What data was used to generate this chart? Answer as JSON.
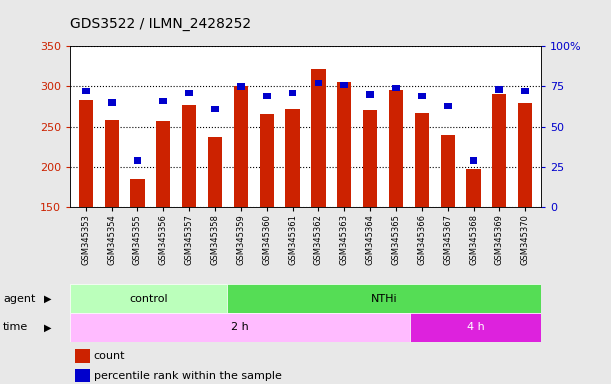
{
  "title": "GDS3522 / ILMN_2428252",
  "samples": [
    "GSM345353",
    "GSM345354",
    "GSM345355",
    "GSM345356",
    "GSM345357",
    "GSM345358",
    "GSM345359",
    "GSM345360",
    "GSM345361",
    "GSM345362",
    "GSM345363",
    "GSM345364",
    "GSM345365",
    "GSM345366",
    "GSM345367",
    "GSM345368",
    "GSM345369",
    "GSM345370"
  ],
  "count_values": [
    283,
    258,
    185,
    257,
    277,
    237,
    301,
    266,
    272,
    322,
    305,
    271,
    296,
    267,
    240,
    197,
    290,
    280
  ],
  "percentile_values": [
    70,
    63,
    27,
    64,
    69,
    59,
    73,
    67,
    69,
    75,
    74,
    68,
    72,
    67,
    61,
    27,
    71,
    70
  ],
  "ylim_left": [
    150,
    350
  ],
  "ylim_right": [
    0,
    100
  ],
  "bar_color_red": "#cc2200",
  "bar_color_blue": "#0000cc",
  "fig_bg": "#e8e8e8",
  "plot_bg": "#ffffff",
  "ylabel_left_color": "#cc2200",
  "ylabel_right_color": "#0000cc",
  "agent_control_color": "#bbffbb",
  "agent_nthi_color": "#55dd55",
  "time_2h_color": "#ffbbff",
  "time_4h_color": "#dd22dd",
  "legend_items": [
    {
      "label": "count",
      "color": "#cc2200"
    },
    {
      "label": "percentile rank within the sample",
      "color": "#0000cc"
    }
  ],
  "control_count": 6,
  "time_2h_count": 13,
  "total_samples": 18
}
